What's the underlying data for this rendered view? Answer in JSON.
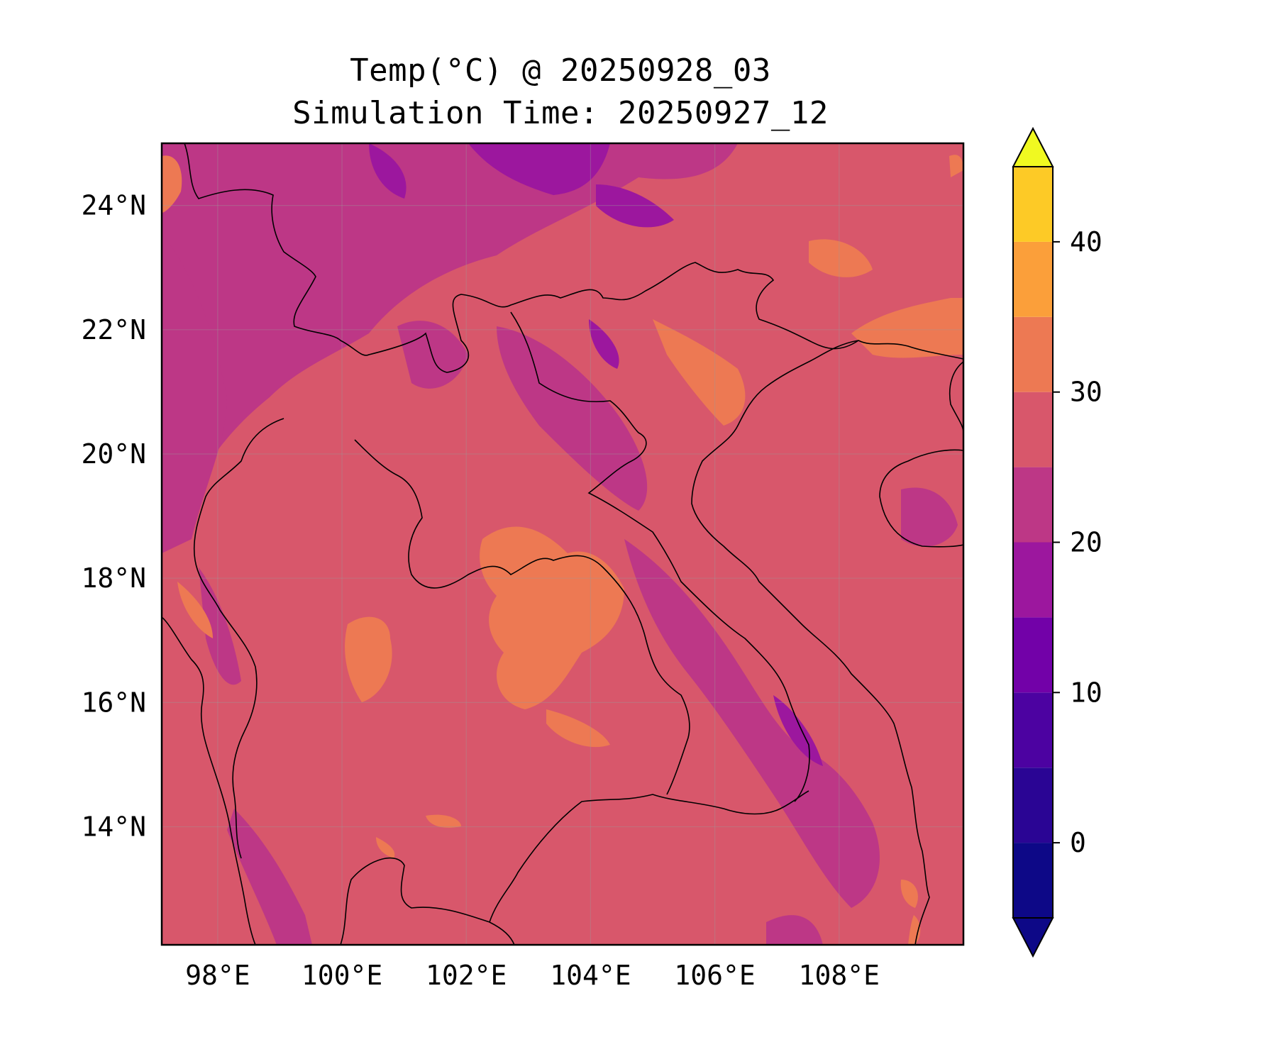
{
  "title_line1": "Temp(°C) @ 20250928_03",
  "title_line2": "Simulation Time: 20250927_12",
  "map": {
    "lon_range": [
      97.1,
      110.0
    ],
    "lat_range": [
      12.1,
      25.0
    ],
    "x_tick_labels": [
      "98°E",
      "100°E",
      "102°E",
      "104°E",
      "106°E",
      "108°E"
    ],
    "x_tick_values": [
      98,
      100,
      102,
      104,
      106,
      108
    ],
    "y_tick_labels": [
      "24°N",
      "22°N",
      "20°N",
      "18°N",
      "16°N",
      "14°N"
    ],
    "y_tick_values": [
      24,
      22,
      20,
      18,
      16,
      14
    ],
    "gridlines": true,
    "coastlines": true,
    "borders": true,
    "dominant_level": "25-30"
  },
  "colorbar": {
    "levels": [
      -5,
      0,
      5,
      10,
      15,
      20,
      25,
      30,
      35,
      40,
      45
    ],
    "tick_labels": [
      "0",
      "10",
      "20",
      "30",
      "40"
    ],
    "tick_values": [
      0,
      10,
      20,
      30,
      40
    ],
    "extend": "both",
    "colors": [
      "#0d0887",
      "#2a0594",
      "#4c02a1",
      "#7201a8",
      "#9c179e",
      "#bd3786",
      "#d8576b",
      "#ed7953",
      "#fb9f3a",
      "#fdca26",
      "#f0f921"
    ]
  }
}
